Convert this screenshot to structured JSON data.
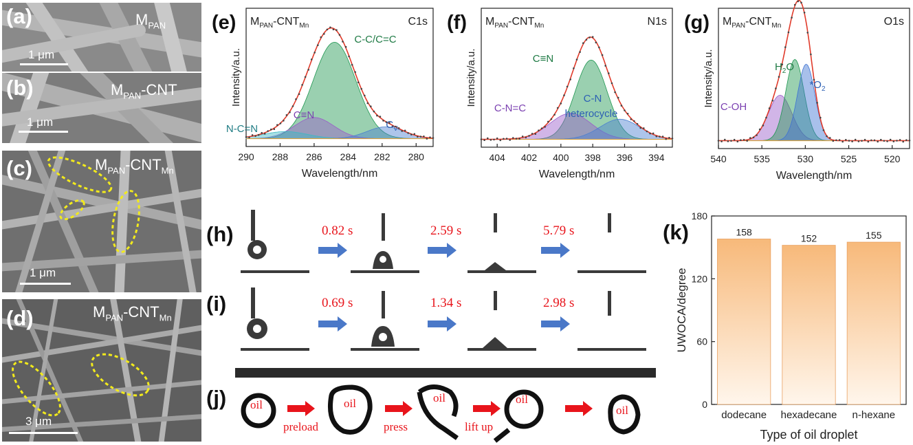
{
  "sem_panels": [
    {
      "label": "(a)",
      "title_main": "M",
      "title_sub": "PAN",
      "title_rest": "",
      "title_sub2": "",
      "scale": "1 μm"
    },
    {
      "label": "(b)",
      "title_main": "M",
      "title_sub": "PAN",
      "title_rest": "-CNT",
      "title_sub2": "",
      "scale": "1 μm"
    },
    {
      "label": "(c)",
      "title_main": "M",
      "title_sub": "PAN",
      "title_rest": "-CNT",
      "title_sub2": "Mn",
      "scale": "1 μm"
    },
    {
      "label": "(d)",
      "title_main": "M",
      "title_sub": "PAN",
      "title_rest": "-CNT",
      "title_sub2": "Mn",
      "scale": "3 μm"
    }
  ],
  "xps_panels": [
    {
      "label": "(e)",
      "title": "M",
      "title_sub": "PAN",
      "title_rest": "-CNT",
      "title_sub2": "Mn",
      "region": "C1s",
      "ylabel": "Intensity/a.u.",
      "xlabel": "Wavelength/nm",
      "xticks": [
        "290",
        "288",
        "286",
        "284",
        "282",
        "280"
      ],
      "peaks": [
        "C-C/C=C",
        "C≡N",
        "N-C=N",
        "C",
        "V"
      ]
    },
    {
      "label": "(f)",
      "title": "M",
      "title_sub": "PAN",
      "title_rest": "-CNT",
      "title_sub2": "Mn",
      "region": "N1s",
      "ylabel": "Intensity/a.u.",
      "xlabel": "Wavelength/nm",
      "xticks": [
        "404",
        "402",
        "400",
        "398",
        "396",
        "394"
      ],
      "peaks": [
        "C≡N",
        "C-N=C",
        "C-N",
        "heterocycle"
      ]
    },
    {
      "label": "(g)",
      "title": "M",
      "title_sub": "PAN",
      "title_rest": "-CNT",
      "title_sub2": "Mn",
      "region": "O1s",
      "ylabel": "Intensity/a.u.",
      "xlabel": "Wavelength/nm",
      "xticks": [
        "540",
        "535",
        "530",
        "525",
        "520"
      ],
      "peaks": [
        "C-OH",
        "H",
        "2",
        "O",
        "*O",
        "2"
      ]
    }
  ],
  "sequences": [
    {
      "label": "(h)",
      "times": [
        "0.82 s",
        "2.59 s",
        "5.79 s"
      ]
    },
    {
      "label": "(i)",
      "times": [
        "0.69 s",
        "1.34 s",
        "2.98 s"
      ]
    },
    {
      "label": "(j)",
      "oil": "oil",
      "operations": [
        "preload",
        "press",
        "lift up"
      ]
    }
  ],
  "bar_panel": {
    "label": "(k)",
    "ylabel": "UWOCA/degree",
    "xlabel": "Type of oil droplet",
    "yticks": [
      "0",
      "60",
      "120",
      "180"
    ],
    "bar_value_labels": [
      "158",
      "152",
      "155"
    ]
  },
  "chart_data": [
    {
      "type": "bar",
      "categories": [
        "dodecane",
        "hexadecane",
        "n-hexane"
      ],
      "values": [
        158,
        152,
        155
      ],
      "title": "",
      "xlabel": "Type of oil droplet",
      "ylabel": "UWOCA/degree",
      "ylim": [
        0,
        180
      ],
      "bar_color_top": "#f7b97a",
      "bar_color_bottom": "#fff6ec"
    },
    {
      "type": "line",
      "region": "C1s",
      "xlim": [
        290,
        279
      ],
      "x": [
        290,
        289,
        288,
        287,
        286,
        285,
        284,
        283,
        282,
        281,
        280,
        279
      ],
      "values": [
        0.03,
        0.06,
        0.14,
        0.33,
        0.7,
        1.0,
        0.9,
        0.55,
        0.25,
        0.1,
        0.04,
        0.02
      ],
      "components": [
        {
          "name": "C-C/C=C",
          "center": 284.8,
          "height": 0.82,
          "color": "#1e9650"
        },
        {
          "name": "C≡N",
          "center": 286.0,
          "height": 0.18,
          "color": "#9a5cc9"
        },
        {
          "name": "N-C=N",
          "center": 287.7,
          "height": 0.06,
          "color": "#3cb8c4"
        },
        {
          "name": "CV",
          "center": 281.8,
          "height": 0.1,
          "color": "#4a7fd0"
        }
      ]
    },
    {
      "type": "line",
      "region": "N1s",
      "xlim": [
        405,
        393
      ],
      "x": [
        405,
        404,
        403,
        402,
        401,
        400,
        399,
        398,
        397,
        396,
        395,
        394,
        393
      ],
      "values": [
        0.02,
        0.03,
        0.05,
        0.12,
        0.3,
        0.6,
        0.9,
        1.0,
        0.8,
        0.45,
        0.18,
        0.06,
        0.03
      ],
      "components": [
        {
          "name": "C≡N",
          "center": 398.1,
          "height": 0.67,
          "color": "#1e9650"
        },
        {
          "name": "C-N=C",
          "center": 399.4,
          "height": 0.22,
          "color": "#9a5cc9"
        },
        {
          "name": "C-N heterocycle",
          "center": 396.3,
          "height": 0.17,
          "color": "#4a7fd0"
        }
      ]
    },
    {
      "type": "line",
      "region": "O1s",
      "xlim": [
        540,
        518
      ],
      "x": [
        540,
        537,
        535,
        534,
        533,
        532,
        531,
        530,
        529,
        528,
        526,
        523,
        520,
        518
      ],
      "values": [
        0.05,
        0.07,
        0.15,
        0.32,
        0.6,
        0.88,
        1.0,
        0.96,
        0.72,
        0.42,
        0.15,
        0.07,
        0.05,
        0.04
      ],
      "components": [
        {
          "name": "C-OH",
          "center": 532.9,
          "height": 0.38,
          "color": "#9a5cc9"
        },
        {
          "name": "H2O",
          "center": 531.2,
          "height": 0.68,
          "color": "#1e9650"
        },
        {
          "name": "*O2",
          "center": 529.9,
          "height": 0.64,
          "color": "#3f73d2"
        }
      ]
    }
  ]
}
